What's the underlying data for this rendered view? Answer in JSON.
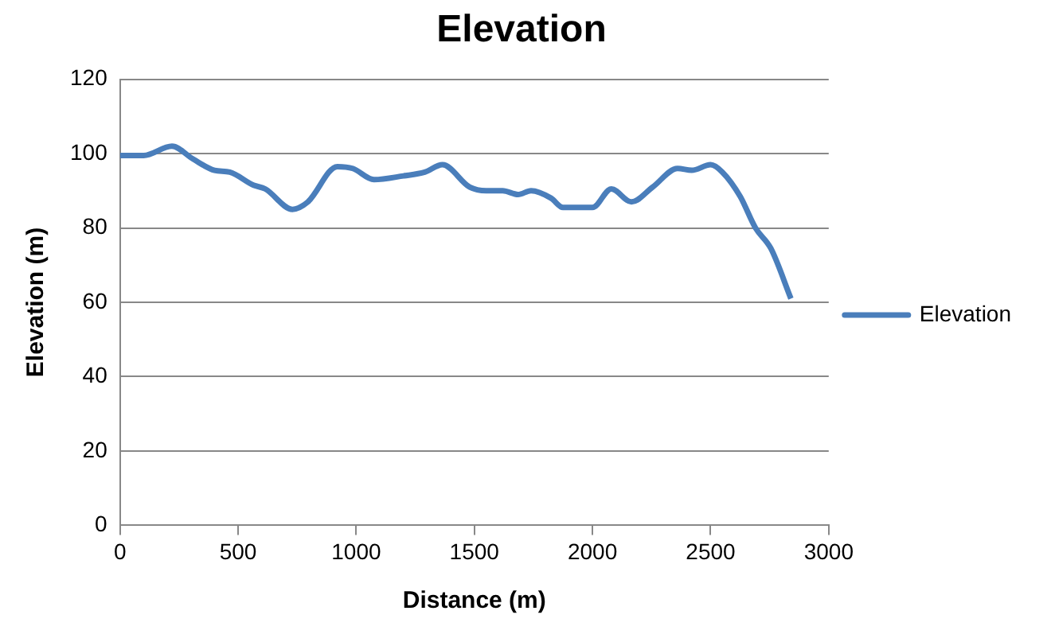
{
  "chart_data": {
    "type": "line",
    "title": "Elevation",
    "xlabel": "Distance (m)",
    "ylabel": "Elevation (m)",
    "x": [
      0,
      100,
      220,
      310,
      400,
      465,
      565,
      615,
      730,
      795,
      920,
      985,
      1075,
      1200,
      1290,
      1365,
      1480,
      1550,
      1620,
      1685,
      1740,
      1825,
      1875,
      1965,
      2000,
      2080,
      2165,
      2255,
      2360,
      2420,
      2500,
      2550,
      2625,
      2690,
      2755,
      2840
    ],
    "series": [
      {
        "name": "Elevation",
        "color": "#4a7ebb",
        "values": [
          99.5,
          99.5,
          102,
          98.5,
          95.5,
          95,
          91.5,
          90.5,
          85,
          87,
          96.5,
          96,
          93,
          94,
          95,
          97,
          91,
          90,
          90,
          89,
          90,
          88,
          85.5,
          85.5,
          85.5,
          90.5,
          87,
          91,
          96,
          95.5,
          97,
          95,
          88.5,
          80,
          74.5,
          61
        ]
      }
    ],
    "xlim": [
      0,
      3000
    ],
    "xticks": [
      0,
      500,
      1000,
      1500,
      2000,
      2500,
      3000
    ],
    "ylim": [
      0,
      120
    ],
    "yticks": [
      0,
      20,
      40,
      60,
      80,
      100,
      120
    ],
    "grid": "y",
    "legend": "right",
    "marker": "none",
    "line_style": "solid"
  }
}
